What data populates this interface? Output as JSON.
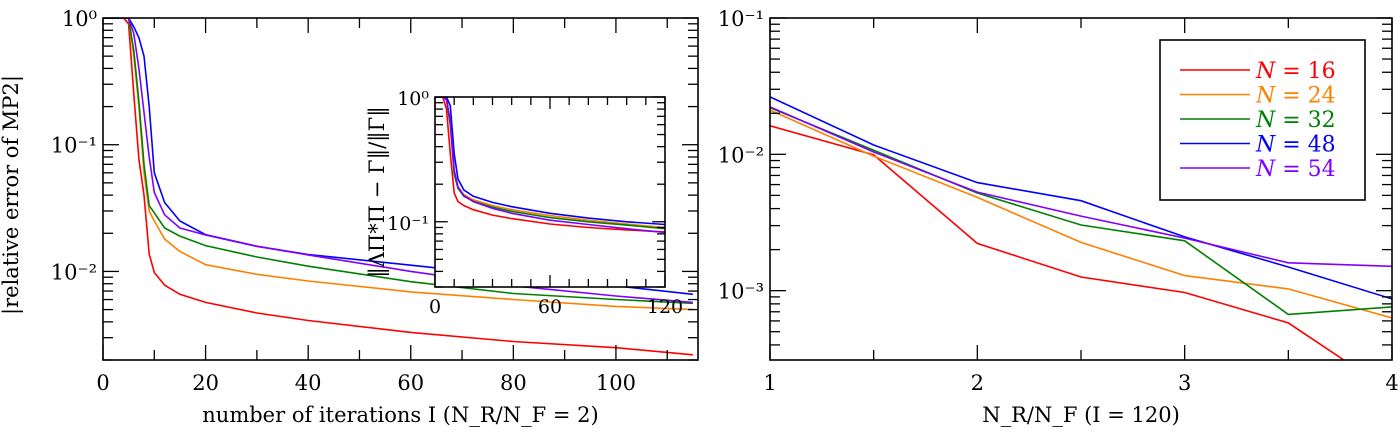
{
  "colors": {
    "N16": "#ff0000",
    "N24": "#ff8000",
    "N32": "#008000",
    "N48": "#0000ff",
    "N54": "#8000ff"
  },
  "chart_data": [
    {
      "type": "line",
      "panel": "left",
      "xlabel": "number of iterations I (N_R/N_F = 2)",
      "xlabel_parts": [
        "number of iterations ",
        "I",
        " (",
        "N",
        "R",
        "/",
        "N",
        "F",
        " = 2)"
      ],
      "ylabel": "|relative error of MP2|",
      "xlim": [
        0,
        116
      ],
      "ylim": [
        0.002,
        1
      ],
      "yscale": "log",
      "xticks": [
        0,
        20,
        40,
        60,
        80,
        100
      ],
      "xtick_labels": [
        "0",
        "20",
        "40",
        "60",
        "80",
        "100"
      ],
      "yticks": [
        1,
        0.1,
        0.01
      ],
      "ytick_labels": [
        "10⁰",
        "10⁻¹",
        "10⁻²"
      ],
      "grid": false,
      "x": [
        0,
        4,
        5,
        6,
        7,
        8,
        9,
        10,
        12,
        15,
        20,
        30,
        40,
        60,
        80,
        100,
        115
      ],
      "series": [
        {
          "name": "N = 16",
          "color_key": "N16",
          "values": [
            1,
            1,
            0.9,
            0.25,
            0.077,
            0.04,
            0.0137,
            0.0098,
            0.0078,
            0.0066,
            0.0057,
            0.0047,
            0.0041,
            0.0033,
            0.0028,
            0.0025,
            0.0022
          ]
        },
        {
          "name": "N = 24",
          "color_key": "N24",
          "values": [
            1,
            1,
            1,
            0.5,
            0.2,
            0.06,
            0.03,
            0.025,
            0.018,
            0.0144,
            0.0113,
            0.0095,
            0.0084,
            0.0069,
            0.006,
            0.0053,
            0.005
          ]
        },
        {
          "name": "N = 32",
          "color_key": "N32",
          "values": [
            1,
            1,
            1,
            0.55,
            0.22,
            0.07,
            0.033,
            0.029,
            0.022,
            0.019,
            0.016,
            0.013,
            0.011,
            0.0083,
            0.0067,
            0.006,
            0.0056
          ]
        },
        {
          "name": "N = 48",
          "color_key": "N48",
          "values": [
            1,
            1,
            1,
            0.85,
            0.7,
            0.5,
            0.2,
            0.06,
            0.035,
            0.025,
            0.0195,
            0.0158,
            0.0136,
            0.0112,
            0.0092,
            0.0077,
            0.0066
          ]
        },
        {
          "name": "N = 54",
          "color_key": "N54",
          "values": [
            1,
            1,
            1,
            0.75,
            0.4,
            0.18,
            0.08,
            0.042,
            0.028,
            0.022,
            0.0194,
            0.0158,
            0.0135,
            0.01,
            0.0077,
            0.0064,
            0.0057
          ]
        }
      ]
    },
    {
      "type": "line",
      "panel": "inset",
      "ylabel": "‖ΛΠ*Π − Γ‖/‖Γ‖",
      "xlim": [
        0,
        120
      ],
      "ylim": [
        0.03,
        1
      ],
      "yscale": "log",
      "xticks": [
        0,
        60,
        120
      ],
      "xtick_labels": [
        "0",
        "60",
        "120"
      ],
      "yticks": [
        1,
        0.1
      ],
      "ytick_labels": [
        "10⁰",
        "10⁻¹"
      ],
      "grid": false,
      "x": [
        0,
        4,
        6,
        8,
        10,
        12,
        15,
        20,
        30,
        40,
        60,
        80,
        100,
        120
      ],
      "series": [
        {
          "name": "N = 16",
          "color_key": "N16",
          "values": [
            1,
            1,
            0.8,
            0.35,
            0.17,
            0.145,
            0.135,
            0.125,
            0.113,
            0.106,
            0.096,
            0.09,
            0.086,
            0.083
          ]
        },
        {
          "name": "N = 24",
          "color_key": "N24",
          "values": [
            1,
            1,
            0.95,
            0.6,
            0.25,
            0.19,
            0.165,
            0.15,
            0.135,
            0.125,
            0.112,
            0.103,
            0.096,
            0.09
          ]
        },
        {
          "name": "N = 32",
          "color_key": "N32",
          "values": [
            1,
            1,
            0.95,
            0.6,
            0.24,
            0.185,
            0.16,
            0.146,
            0.131,
            0.121,
            0.108,
            0.1,
            0.094,
            0.088
          ]
        },
        {
          "name": "N = 48",
          "color_key": "N48",
          "values": [
            1,
            1,
            1,
            0.85,
            0.35,
            0.22,
            0.18,
            0.16,
            0.143,
            0.132,
            0.117,
            0.107,
            0.1,
            0.095
          ]
        },
        {
          "name": "N = 54",
          "color_key": "N54",
          "values": [
            1,
            1,
            0.95,
            0.65,
            0.26,
            0.19,
            0.162,
            0.145,
            0.128,
            0.117,
            0.103,
            0.095,
            0.088,
            0.082
          ]
        }
      ]
    },
    {
      "type": "line",
      "panel": "right",
      "xlabel": "N_R/N_F (I = 120)",
      "xlabel_parts": [
        "N",
        "R",
        "/",
        "N",
        "F",
        " (",
        "I",
        " = 120)"
      ],
      "xlim": [
        1,
        4
      ],
      "ylim": [
        0.00031,
        0.1
      ],
      "yscale": "log",
      "xticks": [
        1,
        2,
        3,
        4
      ],
      "xtick_labels": [
        "1",
        "2",
        "3",
        "4"
      ],
      "yticks": [
        0.1,
        0.01,
        0.001
      ],
      "ytick_labels": [
        "10⁻¹",
        "10⁻²",
        "10⁻³"
      ],
      "grid": false,
      "legend_position": "top-right",
      "x": [
        1,
        1.5,
        2,
        2.5,
        3,
        3.5,
        4
      ],
      "series": [
        {
          "name": "N = 16",
          "color_key": "N16",
          "values": [
            0.0162,
            0.0099,
            0.00222,
            0.00126,
            0.00097,
            0.00058,
            0.00018
          ]
        },
        {
          "name": "N = 24",
          "color_key": "N24",
          "values": [
            0.0211,
            0.0097,
            0.00483,
            0.00226,
            0.00129,
            0.00103,
            0.00063
          ]
        },
        {
          "name": "N = 32",
          "color_key": "N32",
          "values": [
            0.022,
            0.0107,
            0.0052,
            0.00303,
            0.00232,
            0.00067,
            0.00076
          ]
        },
        {
          "name": "N = 48",
          "color_key": "N48",
          "values": [
            0.0264,
            0.0117,
            0.0062,
            0.00457,
            0.00248,
            0.00149,
            0.00087
          ]
        },
        {
          "name": "N = 54",
          "color_key": "N54",
          "values": [
            0.0223,
            0.0104,
            0.00528,
            0.00352,
            0.00243,
            0.0016,
            0.00151
          ]
        }
      ],
      "legend": [
        {
          "var": "N",
          "rest": " = 16",
          "color_key": "N16"
        },
        {
          "var": "N",
          "rest": " = 24",
          "color_key": "N24"
        },
        {
          "var": "N",
          "rest": " = 32",
          "color_key": "N32"
        },
        {
          "var": "N",
          "rest": " = 48",
          "color_key": "N48"
        },
        {
          "var": "N",
          "rest": " = 54",
          "color_key": "N54"
        }
      ]
    }
  ]
}
